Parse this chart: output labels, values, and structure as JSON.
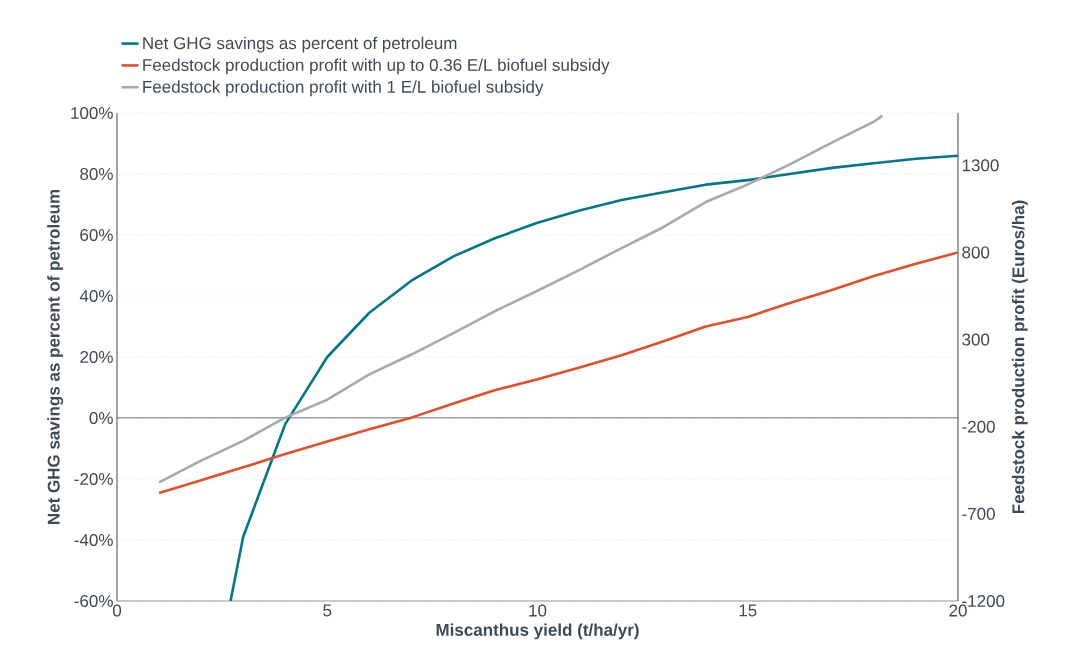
{
  "chart_data": {
    "type": "line",
    "xlabel": "Miscanthus yield (t/ha/yr)",
    "ylabel": "Net GHG savings as percent of petroleum",
    "y2label": "Feedstock production profit (Euros/ha)",
    "xlim": [
      0,
      20
    ],
    "xticks": [
      0,
      5,
      10,
      15,
      20
    ],
    "ylim": [
      -60,
      100
    ],
    "yticks": [
      {
        "value": -60,
        "label": "-60%"
      },
      {
        "value": -40,
        "label": "-40%"
      },
      {
        "value": -20,
        "label": "-20%"
      },
      {
        "value": 0,
        "label": "0%"
      },
      {
        "value": 20,
        "label": "20%"
      },
      {
        "value": 40,
        "label": "40%"
      },
      {
        "value": 60,
        "label": "60%"
      },
      {
        "value": 80,
        "label": "80%"
      },
      {
        "value": 100,
        "label": "100%"
      }
    ],
    "y2lim": [
      -1200,
      1600
    ],
    "y2ticks": [
      -1200,
      -700,
      -200,
      300,
      800,
      1300
    ],
    "grid": "y",
    "legend": "top left",
    "marker": "none",
    "line_style": "solid",
    "ref_lines": [
      {
        "axis": "y",
        "value": 0,
        "color": "#3d4a55"
      }
    ],
    "series": [
      {
        "name": "Net GHG savings as percent of petroleum",
        "color": "#00788a",
        "x": [
          2.7,
          3,
          4,
          5,
          6,
          7,
          8,
          9,
          10,
          11,
          12,
          13,
          14,
          15,
          16,
          17,
          18,
          19,
          20
        ],
        "values": [
          -60,
          -39,
          -2,
          20,
          34.5,
          45,
          53,
          59,
          64,
          68,
          71.5,
          74,
          76.5,
          78,
          80,
          82,
          83.5,
          85,
          86
        ]
      },
      {
        "name": "Feedstock production profit with up to 0.36 E/L biofuel subsidy",
        "color": "#e0502a",
        "axis": "y2",
        "x": [
          1,
          2,
          3,
          4,
          5,
          6,
          7,
          8,
          9,
          10,
          11,
          12,
          13,
          14,
          15,
          16,
          17,
          18,
          19,
          20
        ],
        "values": [
          -580,
          -507,
          -433,
          -357,
          -285,
          -215,
          -148,
          -67,
          10,
          72,
          140,
          210,
          290,
          375,
          430,
          510,
          585,
          665,
          735,
          800
        ]
      },
      {
        "name": "Feedstock production profit with 1 E/L biofuel subsidy",
        "color": "#a8a9ab",
        "axis": "y2",
        "x": [
          1,
          2,
          3,
          4,
          5,
          6,
          7,
          8,
          9,
          10,
          11,
          12,
          13,
          14,
          15,
          16,
          17,
          18,
          18.2
        ],
        "values": [
          -519,
          -395,
          -281,
          -148,
          -45,
          100,
          214,
          337,
          465,
          580,
          700,
          825,
          946,
          1089,
          1190,
          1305,
          1430,
          1550,
          1585
        ]
      }
    ]
  }
}
